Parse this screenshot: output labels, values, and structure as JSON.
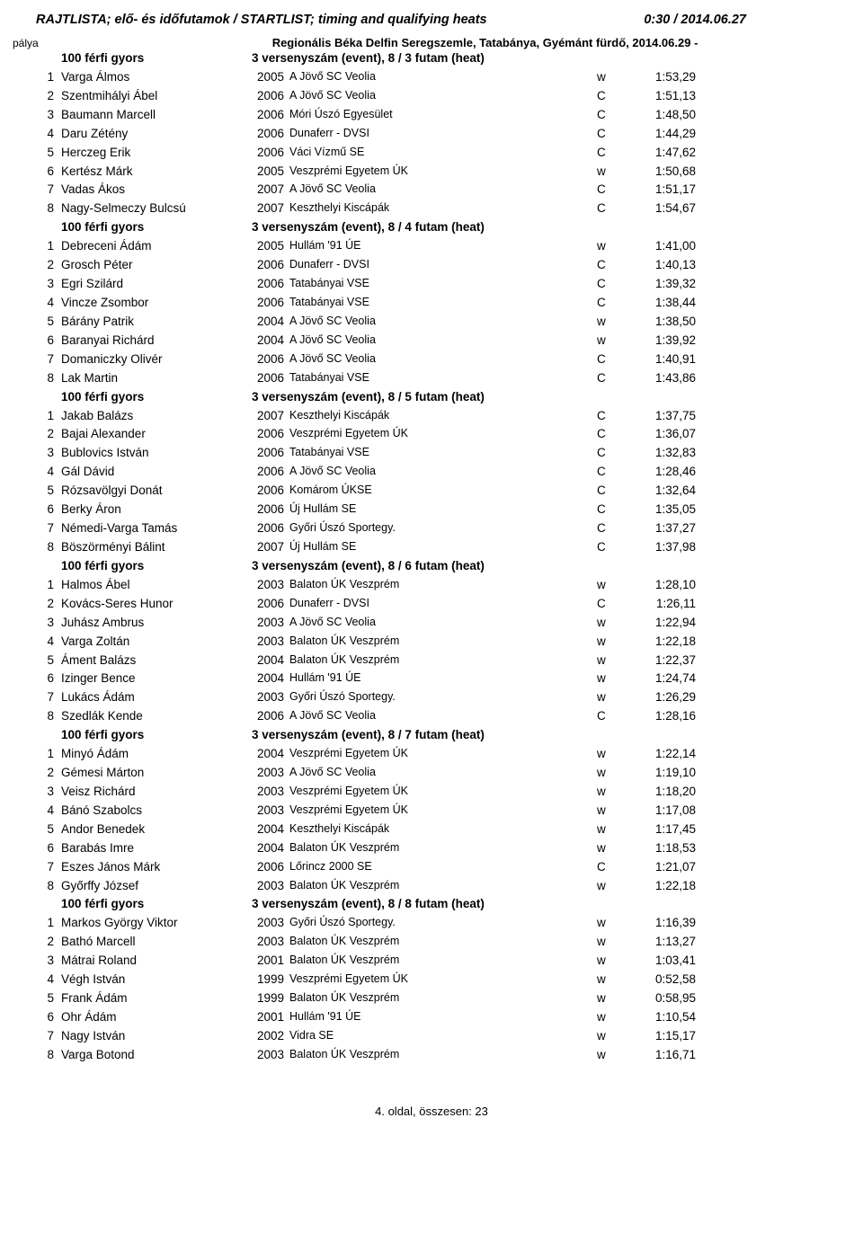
{
  "top": {
    "left": "RAJTLISTA; elő- és időfutamok / STARTLIST; timing and qualifying heats",
    "right": "0:30 / 2014.06.27"
  },
  "palya_label": "pálya",
  "subheading": "Regionális Béka Delfin Seregszemle, Tatabánya, Gyémánt fürdő, 2014.06.29 -",
  "footer": "4. oldal, összesen: 23",
  "heats": [
    {
      "title_left": "100 férfi gyors",
      "title_right": "3 versenyszám (event),  8 / 3 futam (heat)",
      "rows": [
        {
          "n": "1",
          "name": "Varga Álmos",
          "yr": "2005",
          "club": "A Jövő SC Veolia",
          "cat": "w",
          "time": "1:53,29"
        },
        {
          "n": "2",
          "name": "Szentmihályi Ábel",
          "yr": "2006",
          "club": "A Jövő SC Veolia",
          "cat": "C",
          "time": "1:51,13"
        },
        {
          "n": "3",
          "name": "Baumann Marcell",
          "yr": "2006",
          "club": "Móri Úszó Egyesület",
          "cat": "C",
          "time": "1:48,50"
        },
        {
          "n": "4",
          "name": "Daru Zétény",
          "yr": "2006",
          "club": "Dunaferr - DVSI",
          "cat": "C",
          "time": "1:44,29"
        },
        {
          "n": "5",
          "name": "Herczeg Erik",
          "yr": "2006",
          "club": "Váci Vízmű SE",
          "cat": "C",
          "time": "1:47,62"
        },
        {
          "n": "6",
          "name": "Kertész Márk",
          "yr": "2005",
          "club": "Veszprémi Egyetem ÚK",
          "cat": "w",
          "time": "1:50,68"
        },
        {
          "n": "7",
          "name": "Vadas Ákos",
          "yr": "2007",
          "club": "A Jövő SC Veolia",
          "cat": "C",
          "time": "1:51,17"
        },
        {
          "n": "8",
          "name": "Nagy-Selmeczy Bulcsú",
          "yr": "2007",
          "club": "Keszthelyi Kiscápák",
          "cat": "C",
          "time": "1:54,67"
        }
      ]
    },
    {
      "title_left": "100 férfi gyors",
      "title_right": "3 versenyszám (event),  8 / 4 futam (heat)",
      "rows": [
        {
          "n": "1",
          "name": "Debreceni Ádám",
          "yr": "2005",
          "club": "Hullám '91 ÚE",
          "cat": "w",
          "time": "1:41,00"
        },
        {
          "n": "2",
          "name": "Grosch Péter",
          "yr": "2006",
          "club": "Dunaferr - DVSI",
          "cat": "C",
          "time": "1:40,13"
        },
        {
          "n": "3",
          "name": "Egri Szilárd",
          "yr": "2006",
          "club": "Tatabányai VSE",
          "cat": "C",
          "time": "1:39,32"
        },
        {
          "n": "4",
          "name": "Vincze Zsombor",
          "yr": "2006",
          "club": "Tatabányai VSE",
          "cat": "C",
          "time": "1:38,44"
        },
        {
          "n": "5",
          "name": "Bárány Patrik",
          "yr": "2004",
          "club": "A Jövő SC Veolia",
          "cat": "w",
          "time": "1:38,50"
        },
        {
          "n": "6",
          "name": "Baranyai Richárd",
          "yr": "2004",
          "club": "A Jövő SC Veolia",
          "cat": "w",
          "time": "1:39,92"
        },
        {
          "n": "7",
          "name": "Domaniczky Olivér",
          "yr": "2006",
          "club": "A Jövő SC Veolia",
          "cat": "C",
          "time": "1:40,91"
        },
        {
          "n": "8",
          "name": "Lak Martin",
          "yr": "2006",
          "club": "Tatabányai VSE",
          "cat": "C",
          "time": "1:43,86"
        }
      ]
    },
    {
      "title_left": "100 férfi gyors",
      "title_right": "3 versenyszám (event),  8 / 5 futam (heat)",
      "rows": [
        {
          "n": "1",
          "name": "Jakab Balázs",
          "yr": "2007",
          "club": "Keszthelyi Kiscápák",
          "cat": "C",
          "time": "1:37,75"
        },
        {
          "n": "2",
          "name": "Bajai Alexander",
          "yr": "2006",
          "club": "Veszprémi Egyetem ÚK",
          "cat": "C",
          "time": "1:36,07"
        },
        {
          "n": "3",
          "name": "Bublovics István",
          "yr": "2006",
          "club": "Tatabányai VSE",
          "cat": "C",
          "time": "1:32,83"
        },
        {
          "n": "4",
          "name": "Gál Dávid",
          "yr": "2006",
          "club": "A Jövő SC Veolia",
          "cat": "C",
          "time": "1:28,46"
        },
        {
          "n": "5",
          "name": "Rózsavölgyi Donát",
          "yr": "2006",
          "club": "Komárom ÚKSE",
          "cat": "C",
          "time": "1:32,64"
        },
        {
          "n": "6",
          "name": "Berky Áron",
          "yr": "2006",
          "club": "Új Hullám SE",
          "cat": "C",
          "time": "1:35,05"
        },
        {
          "n": "7",
          "name": "Némedi-Varga Tamás",
          "yr": "2006",
          "club": "Győri Úszó Sportegy.",
          "cat": "C",
          "time": "1:37,27"
        },
        {
          "n": "8",
          "name": "Böszörményi Bálint",
          "yr": "2007",
          "club": "Új Hullám SE",
          "cat": "C",
          "time": "1:37,98"
        }
      ]
    },
    {
      "title_left": "100 férfi gyors",
      "title_right": "3 versenyszám (event),  8 / 6 futam (heat)",
      "rows": [
        {
          "n": "1",
          "name": "Halmos Ábel",
          "yr": "2003",
          "club": "Balaton ÚK Veszprém",
          "cat": "w",
          "time": "1:28,10"
        },
        {
          "n": "2",
          "name": "Kovács-Seres Hunor",
          "yr": "2006",
          "club": "Dunaferr - DVSI",
          "cat": "C",
          "time": "1:26,11"
        },
        {
          "n": "3",
          "name": "Juhász Ambrus",
          "yr": "2003",
          "club": "A Jövő SC Veolia",
          "cat": "w",
          "time": "1:22,94"
        },
        {
          "n": "4",
          "name": "Varga Zoltán",
          "yr": "2003",
          "club": "Balaton ÚK Veszprém",
          "cat": "w",
          "time": "1:22,18"
        },
        {
          "n": "5",
          "name": "Áment Balázs",
          "yr": "2004",
          "club": "Balaton ÚK Veszprém",
          "cat": "w",
          "time": "1:22,37"
        },
        {
          "n": "6",
          "name": "Izinger Bence",
          "yr": "2004",
          "club": "Hullám '91 ÚE",
          "cat": "w",
          "time": "1:24,74"
        },
        {
          "n": "7",
          "name": "Lukács Ádám",
          "yr": "2003",
          "club": "Győri Úszó Sportegy.",
          "cat": "w",
          "time": "1:26,29"
        },
        {
          "n": "8",
          "name": "Szedlák Kende",
          "yr": "2006",
          "club": "A Jövő SC Veolia",
          "cat": "C",
          "time": "1:28,16"
        }
      ]
    },
    {
      "title_left": "100 férfi gyors",
      "title_right": "3 versenyszám (event),  8 / 7 futam (heat)",
      "rows": [
        {
          "n": "1",
          "name": "Minyó Ádám",
          "yr": "2004",
          "club": "Veszprémi Egyetem ÚK",
          "cat": "w",
          "time": "1:22,14"
        },
        {
          "n": "2",
          "name": "Gémesi Márton",
          "yr": "2003",
          "club": "A Jövő SC Veolia",
          "cat": "w",
          "time": "1:19,10"
        },
        {
          "n": "3",
          "name": "Veisz Richárd",
          "yr": "2003",
          "club": "Veszprémi Egyetem ÚK",
          "cat": "w",
          "time": "1:18,20"
        },
        {
          "n": "4",
          "name": "Bánó Szabolcs",
          "yr": "2003",
          "club": "Veszprémi Egyetem ÚK",
          "cat": "w",
          "time": "1:17,08"
        },
        {
          "n": "5",
          "name": "Andor Benedek",
          "yr": "2004",
          "club": "Keszthelyi Kiscápák",
          "cat": "w",
          "time": "1:17,45"
        },
        {
          "n": "6",
          "name": "Barabás Imre",
          "yr": "2004",
          "club": "Balaton ÚK Veszprém",
          "cat": "w",
          "time": "1:18,53"
        },
        {
          "n": "7",
          "name": "Eszes János Márk",
          "yr": "2006",
          "club": "Lőrincz 2000 SE",
          "cat": "C",
          "time": "1:21,07"
        },
        {
          "n": "8",
          "name": "Győrffy József",
          "yr": "2003",
          "club": "Balaton ÚK Veszprém",
          "cat": "w",
          "time": "1:22,18"
        }
      ]
    },
    {
      "title_left": "100 férfi gyors",
      "title_right": "3 versenyszám (event),  8 / 8 futam (heat)",
      "rows": [
        {
          "n": "1",
          "name": "Markos György Viktor",
          "yr": "2003",
          "club": "Győri Úszó Sportegy.",
          "cat": "w",
          "time": "1:16,39"
        },
        {
          "n": "2",
          "name": "Bathó Marcell",
          "yr": "2003",
          "club": "Balaton ÚK Veszprém",
          "cat": "w",
          "time": "1:13,27"
        },
        {
          "n": "3",
          "name": "Mátrai Roland",
          "yr": "2001",
          "club": "Balaton ÚK Veszprém",
          "cat": "w",
          "time": "1:03,41"
        },
        {
          "n": "4",
          "name": "Végh István",
          "yr": "1999",
          "club": "Veszprémi Egyetem ÚK",
          "cat": "w",
          "time": "0:52,58"
        },
        {
          "n": "5",
          "name": "Frank Ádám",
          "yr": "1999",
          "club": "Balaton ÚK Veszprém",
          "cat": "w",
          "time": "0:58,95"
        },
        {
          "n": "6",
          "name": "Ohr Ádám",
          "yr": "2001",
          "club": "Hullám '91 ÚE",
          "cat": "w",
          "time": "1:10,54"
        },
        {
          "n": "7",
          "name": "Nagy István",
          "yr": "2002",
          "club": "Vidra SE",
          "cat": "w",
          "time": "1:15,17"
        },
        {
          "n": "8",
          "name": "Varga Botond",
          "yr": "2003",
          "club": "Balaton ÚK Veszprém",
          "cat": "w",
          "time": "1:16,71"
        }
      ]
    }
  ]
}
